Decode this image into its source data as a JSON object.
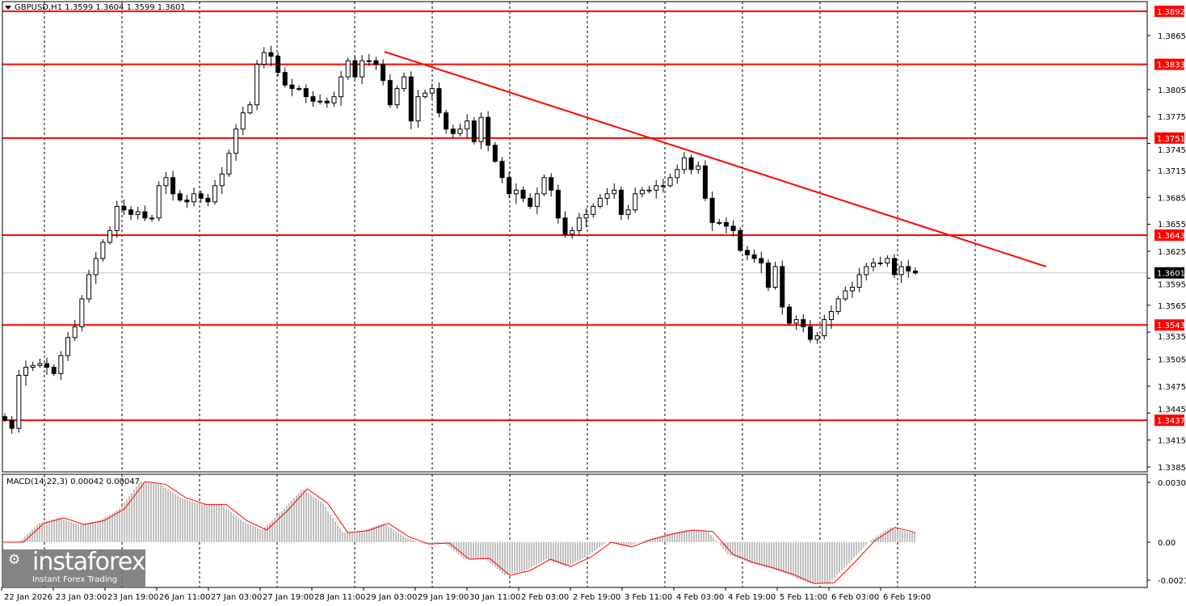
{
  "header": {
    "symbol_info": "GBPUSD,H1  1.3599 1.3604 1.3599 1.3601"
  },
  "macd_header": "MACD(14,22,3) 0.00042 0.00047",
  "watermark": {
    "brand": "instaforex",
    "tagline": "Instant Forex Trading"
  },
  "colors": {
    "level": "#ff0000",
    "trendline": "#ff0000",
    "bull_body": "#ffffff",
    "bear_body": "#000000",
    "grid": "#000000",
    "current_price": "#c0c0c0",
    "macd_hist": "#c0c0c0",
    "macd_signal": "#ff0000"
  },
  "chart_data": [
    {
      "type": "candlestick",
      "title": "GBPUSD,H1",
      "y_ticks": [
        "1.3865",
        "1.3805",
        "1.3775",
        "1.3745",
        "1.3715",
        "1.3685",
        "1.3655",
        "1.3625",
        "1.3595",
        "1.3565",
        "1.3535",
        "1.3505",
        "1.3475",
        "1.3445",
        "1.3415",
        "1.3385"
      ],
      "x_ticks": [
        "22 Jan 2026",
        "23 Jan 03:00",
        "23 Jan 19:00",
        "26 Jan 11:00",
        "27 Jan 03:00",
        "27 Jan 19:00",
        "28 Jan 11:00",
        "29 Jan 03:00",
        "29 Jan 19:00",
        "30 Jan 11:00",
        "2 Feb 03:00",
        "2 Feb 19:00",
        "3 Feb 11:00",
        "4 Feb 03:00",
        "4 Feb 19:00",
        "5 Feb 11:00",
        "6 Feb 03:00",
        "6 Feb 19:00"
      ],
      "ylim": [
        1.337,
        1.3905
      ],
      "grid": "vertical dashed",
      "levels": [
        "1.3892",
        "1.3833",
        "1.3751",
        "1.3643",
        "1.3543",
        "1.3437"
      ],
      "current_price": "1.3601",
      "trendline": {
        "start_price": 1.3847,
        "end_price": 1.3608
      },
      "close": [
        1.3437,
        1.3428,
        1.3487,
        1.3496,
        1.3498,
        1.35,
        1.3496,
        1.3489,
        1.3509,
        1.3529,
        1.3541,
        1.3572,
        1.3599,
        1.3617,
        1.3635,
        1.3648,
        1.3675,
        1.3671,
        1.3666,
        1.3669,
        1.3662,
        1.3662,
        1.3698,
        1.3707,
        1.3689,
        1.3682,
        1.368,
        1.3689,
        1.3684,
        1.368,
        1.3698,
        1.3711,
        1.3734,
        1.3761,
        1.3779,
        1.3788,
        1.3833,
        1.3846,
        1.3842,
        1.3824,
        1.381,
        1.3806,
        1.3806,
        1.3797,
        1.3792,
        1.3792,
        1.379,
        1.3797,
        1.3819,
        1.3837,
        1.3819,
        1.3837,
        1.3837,
        1.3833,
        1.3815,
        1.3788,
        1.3806,
        1.3819,
        1.377,
        1.3797,
        1.3801,
        1.3806,
        1.3779,
        1.3761,
        1.3756,
        1.3761,
        1.377,
        1.3747,
        1.3774,
        1.3743,
        1.3725,
        1.3707,
        1.3689,
        1.3693,
        1.3684,
        1.3675,
        1.3689,
        1.3707,
        1.3693,
        1.3662,
        1.3644,
        1.3648,
        1.3662,
        1.3666,
        1.3675,
        1.3684,
        1.3689,
        1.3693,
        1.3666,
        1.3671,
        1.3689,
        1.3693,
        1.3693,
        1.3698,
        1.3698,
        1.3707,
        1.3716,
        1.3729,
        1.3716,
        1.372,
        1.3684,
        1.3657,
        1.3657,
        1.3653,
        1.3648,
        1.3626,
        1.3621,
        1.3617,
        1.3612,
        1.3585,
        1.3608,
        1.3563,
        1.3545,
        1.3549,
        1.3541,
        1.3527,
        1.3531,
        1.3549,
        1.3558,
        1.3572,
        1.3581,
        1.3585,
        1.3599,
        1.3608,
        1.3612,
        1.3612,
        1.3617,
        1.3599,
        1.3608,
        1.3603,
        1.3601
      ]
    },
    {
      "type": "bar",
      "title": "MACD(14,22,3)",
      "y_ticks": [
        "0.00303",
        "0.00",
        "-0.00211"
      ],
      "ylim": [
        -0.00225,
        0.00325
      ],
      "signal": [
        0.0,
        0.0,
        0.00093,
        0.0012,
        0.00087,
        0.00107,
        0.00166,
        0.00299,
        0.00286,
        0.0022,
        0.00186,
        0.00186,
        0.00107,
        0.0006,
        0.00153,
        0.00263,
        0.00193,
        0.00047,
        0.00057,
        0.00093,
        0.00027,
        -9e-05,
        -4e-05,
        -0.00084,
        -0.0008,
        -0.00164,
        -0.0014,
        -0.00084,
        -0.0012,
        -0.00073,
        0.0,
        -0.00023,
        0.00013,
        0.0004,
        0.0006,
        0.00053,
        -0.0006,
        -0.001,
        -0.00127,
        -0.0016,
        -0.00204,
        -0.002,
        -0.001,
        7e-05,
        0.00073,
        0.00047
      ],
      "last_macd": 0.00042,
      "last_signal": 0.00047
    }
  ]
}
